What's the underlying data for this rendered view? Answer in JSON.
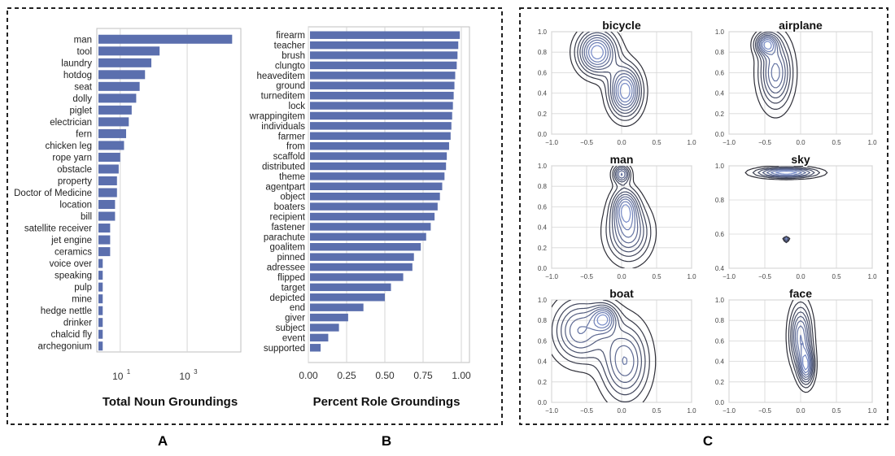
{
  "colors": {
    "bar": "#5b6fae",
    "grid": "#d6d6d6",
    "frame": "#bfbfbf",
    "contour": "#2f2f38",
    "panel_border": "#222222"
  },
  "panel_labels": {
    "a": "A",
    "b": "B",
    "c": "C"
  },
  "chart_data": [
    {
      "type": "bar",
      "orientation": "horizontal",
      "scale": "log",
      "xlabel": "Total Noun Groundings",
      "xlim": [
        2,
        40000
      ],
      "ticks": [
        {
          "value": 10,
          "label": "10",
          "exp": "1"
        },
        {
          "value": 1000,
          "label": "10",
          "exp": "3"
        }
      ],
      "categories": [
        "man",
        "tool",
        "laundry",
        "hotdog",
        "seat",
        "dolly",
        "piglet",
        "electrician",
        "fern",
        "chicken leg",
        "rope yarn",
        "obstacle",
        "property",
        "Doctor of Medicine",
        "location",
        "bill",
        "satellite receiver",
        "jet engine",
        "ceramics",
        "voice over",
        "speaking",
        "pulp",
        "mine",
        "hedge nettle",
        "drinker",
        "chalcid fly",
        "archegonium"
      ],
      "values": [
        22000,
        150,
        85,
        55,
        38,
        30,
        22,
        18,
        15,
        13,
        10,
        9,
        8,
        8,
        7,
        7,
        5,
        5,
        5,
        3,
        3,
        3,
        3,
        3,
        3,
        3,
        3
      ]
    },
    {
      "type": "bar",
      "orientation": "horizontal",
      "xlabel": "Percent Role Groundings",
      "xlim": [
        0,
        1
      ],
      "ticks": [
        {
          "value": 0,
          "label": "0.00"
        },
        {
          "value": 0.25,
          "label": "0.25"
        },
        {
          "value": 0.5,
          "label": "0.50"
        },
        {
          "value": 0.75,
          "label": "0.75"
        },
        {
          "value": 1,
          "label": "1.00"
        }
      ],
      "categories": [
        "firearm",
        "teacher",
        "brush",
        "clungto",
        "heaveditem",
        "ground",
        "turneditem",
        "lock",
        "wrappingitem",
        "individuals",
        "farmer",
        "from",
        "scaffold",
        "distributed",
        "theme",
        "agentpart",
        "object",
        "boaters",
        "recipient",
        "fastener",
        "parachute",
        "goalitem",
        "pinned",
        "adressee",
        "flipped",
        "target",
        "depicted",
        "end",
        "giver",
        "subject",
        "event",
        "supported"
      ],
      "values": [
        0.99,
        0.98,
        0.975,
        0.97,
        0.96,
        0.955,
        0.95,
        0.945,
        0.94,
        0.935,
        0.93,
        0.92,
        0.905,
        0.9,
        0.89,
        0.875,
        0.86,
        0.845,
        0.825,
        0.8,
        0.77,
        0.735,
        0.69,
        0.68,
        0.62,
        0.54,
        0.5,
        0.36,
        0.26,
        0.2,
        0.13,
        0.08
      ]
    },
    {
      "type": "contour",
      "title": "bicycle",
      "xlim": [
        -1,
        1
      ],
      "ylim": [
        0,
        1
      ],
      "xticks": [
        "−1.0",
        "−0.5",
        "0.0",
        "0.5",
        "1.0"
      ],
      "yticks": [
        "0.0",
        "0.2",
        "0.4",
        "0.6",
        "0.8",
        "1.0"
      ],
      "peaks": [
        [
          0.05,
          0.42,
          0.15,
          0.16
        ],
        [
          -0.35,
          0.8,
          0.18,
          0.14
        ]
      ],
      "levels": 9
    },
    {
      "type": "contour",
      "title": "airplane",
      "xlim": [
        -1,
        1
      ],
      "ylim": [
        0,
        1
      ],
      "xticks": [
        "−1.0",
        "−0.5",
        "0.0",
        "0.5",
        "1.0"
      ],
      "yticks": [
        "0.0",
        "0.2",
        "0.4",
        "0.6",
        "0.8",
        "1.0"
      ],
      "peaks": [
        [
          -0.48,
          0.88,
          0.1,
          0.07
        ],
        [
          -0.35,
          0.6,
          0.15,
          0.22
        ]
      ],
      "levels": 9
    },
    {
      "type": "contour",
      "title": "man",
      "xlim": [
        -1,
        1
      ],
      "ylim": [
        0,
        1
      ],
      "xticks": [
        "−1.0",
        "−0.5",
        "0.0",
        "0.5",
        "1.0"
      ],
      "yticks": [
        "0.0",
        "0.2",
        "0.4",
        "0.6",
        "0.8",
        "1.0"
      ],
      "peaks": [
        [
          0.05,
          0.6,
          0.12,
          0.12
        ],
        [
          0.0,
          0.92,
          0.08,
          0.06
        ],
        [
          0.1,
          0.35,
          0.2,
          0.18
        ]
      ],
      "levels": 9
    },
    {
      "type": "contour",
      "title": "sky",
      "xlim": [
        -1,
        1
      ],
      "ylim": [
        0.4,
        1
      ],
      "xticks": [
        "−1.0",
        "−0.5",
        "0.0",
        "0.5",
        "1.0"
      ],
      "yticks": [
        "0.4",
        "0.6",
        "0.8",
        "1.0"
      ],
      "peaks": [
        [
          -0.2,
          0.96,
          0.28,
          0.02
        ],
        [
          -0.2,
          0.57,
          0.02,
          0.008
        ]
      ],
      "levels": 7
    },
    {
      "type": "contour",
      "title": "boat",
      "xlim": [
        -1,
        1
      ],
      "ylim": [
        0,
        1
      ],
      "xticks": [
        "−1.0",
        "−0.5",
        "0.0",
        "0.5",
        "1.0"
      ],
      "yticks": [
        "0.0",
        "0.2",
        "0.4",
        "0.6",
        "0.8",
        "1.0"
      ],
      "peaks": [
        [
          -0.25,
          0.82,
          0.12,
          0.09
        ],
        [
          -0.6,
          0.7,
          0.25,
          0.2
        ],
        [
          0.05,
          0.4,
          0.22,
          0.25
        ]
      ],
      "levels": 9
    },
    {
      "type": "contour",
      "title": "face",
      "xlim": [
        -1,
        1
      ],
      "ylim": [
        0,
        1
      ],
      "xticks": [
        "−1.0",
        "−0.5",
        "0.0",
        "0.5",
        "1.0"
      ],
      "yticks": [
        "0.0",
        "0.2",
        "0.4",
        "0.6",
        "0.8",
        "1.0"
      ],
      "peaks": [
        [
          0.08,
          0.35,
          0.07,
          0.12
        ],
        [
          0.0,
          0.65,
          0.1,
          0.2
        ]
      ],
      "levels": 9
    }
  ]
}
